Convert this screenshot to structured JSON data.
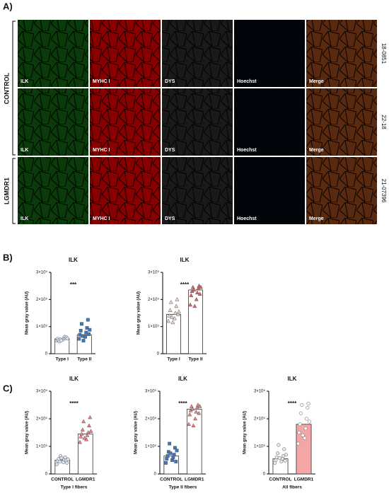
{
  "panel_a": {
    "label": "A)",
    "groups": [
      "CONTROL",
      "LGMDR1"
    ],
    "samples": [
      "18-0851",
      "22-18",
      "21-07396"
    ],
    "channels": [
      "ILK",
      "MYHC I",
      "DYS",
      "Hoechst",
      "Merge"
    ]
  },
  "panel_b_label": "B)",
  "panel_c_label": "C)",
  "chart_data": [
    {
      "type": "bar",
      "title": "ILK",
      "ylabel": "Mean gray value (AU)",
      "categories": [
        "Type I",
        "Type II"
      ],
      "values": [
        55000,
        70000
      ],
      "bar_colors": [
        "#ffffff",
        "#ffffff"
      ],
      "point_colors": [
        "#d8e4f0",
        "#3a78c0"
      ],
      "markers": [
        "circle",
        "square"
      ],
      "significance": "***",
      "points": [
        [
          48000,
          52000,
          55000,
          58000,
          50000,
          62000,
          45000,
          57000,
          53000,
          60000,
          49000,
          56000
        ],
        [
          55000,
          62000,
          70000,
          78000,
          85000,
          95000,
          110000,
          125000,
          65000,
          72000,
          48000,
          88000
        ]
      ],
      "ylim": [
        0,
        300000
      ],
      "yticks": [
        0,
        {
          "value": 100000,
          "label": "1×10⁵"
        },
        {
          "value": 200000,
          "label": "2×10⁵"
        },
        {
          "value": 300000,
          "label": "3×10⁵"
        }
      ]
    },
    {
      "type": "bar",
      "title": "ILK",
      "ylabel": "Mean gray value (AU)",
      "categories": [
        "Type I",
        "Type II"
      ],
      "values": [
        145000,
        235000
      ],
      "bar_colors": [
        "#ffffff",
        "#ffffff"
      ],
      "point_colors": [
        "#f2d0d0",
        "#e06060"
      ],
      "markers": [
        "triangle",
        "triangle"
      ],
      "significance": "****",
      "points": [
        [
          120000,
          130000,
          140000,
          150000,
          160000,
          175000,
          190000,
          200000,
          135000,
          145000,
          115000,
          155000
        ],
        [
          180000,
          200000,
          215000,
          225000,
          230000,
          240000,
          245000,
          250000,
          235000,
          220000,
          175000,
          245000
        ]
      ],
      "ylim": [
        0,
        300000
      ],
      "yticks": [
        0,
        {
          "value": 100000,
          "label": "1×10⁵"
        },
        {
          "value": 200000,
          "label": "2×10⁵"
        },
        {
          "value": 300000,
          "label": "3×10⁵"
        }
      ]
    },
    {
      "type": "bar",
      "title": "ILK",
      "ylabel": "Mean gray value (AU)",
      "xlabel": "Type I fibers",
      "categories": [
        "CONTROL",
        "LGMDR1"
      ],
      "values": [
        50000,
        145000
      ],
      "bar_colors": [
        "#ffffff",
        "#ffffff"
      ],
      "point_colors": [
        "#d8e4f0",
        "#f08080"
      ],
      "markers": [
        "circle",
        "triangle"
      ],
      "significance": "****",
      "points": [
        [
          35000,
          42000,
          48000,
          52000,
          55000,
          60000,
          45000,
          50000,
          65000,
          40000,
          58000,
          53000
        ],
        [
          115000,
          125000,
          135000,
          140000,
          145000,
          150000,
          160000,
          175000,
          190000,
          205000,
          130000,
          155000
        ]
      ],
      "ylim": [
        0,
        300000
      ],
      "yticks": [
        0,
        {
          "value": 100000,
          "label": "1×10⁵"
        },
        {
          "value": 200000,
          "label": "2×10⁵"
        },
        {
          "value": 300000,
          "label": "3×10⁵"
        }
      ]
    },
    {
      "type": "bar",
      "title": "ILK",
      "ylabel": "Mean gray value (AU)",
      "xlabel": "Type II fibers",
      "categories": [
        "CONTROL",
        "LGMDR1"
      ],
      "values": [
        65000,
        235000
      ],
      "bar_colors": [
        "#ffffff",
        "#ffffff"
      ],
      "point_colors": [
        "#3a78c0",
        "#f08080"
      ],
      "markers": [
        "square",
        "triangle"
      ],
      "significance": "****",
      "points": [
        [
          40000,
          50000,
          55000,
          60000,
          65000,
          70000,
          80000,
          95000,
          110000,
          45000,
          75000,
          85000
        ],
        [
          180000,
          200000,
          215000,
          225000,
          230000,
          240000,
          245000,
          250000,
          235000,
          220000,
          175000,
          245000
        ]
      ],
      "ylim": [
        0,
        300000
      ],
      "yticks": [
        0,
        {
          "value": 100000,
          "label": "1×10⁵"
        },
        {
          "value": 200000,
          "label": "2×10⁵"
        },
        {
          "value": 300000,
          "label": "3×10⁵"
        }
      ]
    },
    {
      "type": "bar",
      "title": "ILK",
      "ylabel": "Mean gray value (AU)",
      "xlabel": "All fibers",
      "categories": [
        "CONTROL",
        "LGMDR1"
      ],
      "values": [
        55000,
        180000
      ],
      "bar_colors": [
        "#ffffff",
        "#f4a6a6"
      ],
      "point_colors": [
        "#e8e8e8",
        "#ffffff"
      ],
      "markers": [
        "circle",
        "circle"
      ],
      "significance": "****",
      "points": [
        [
          40000,
          45000,
          50000,
          55000,
          60000,
          65000,
          75000,
          90000,
          105000,
          48000,
          58000,
          70000
        ],
        [
          110000,
          130000,
          150000,
          165000,
          180000,
          200000,
          220000,
          240000,
          250000,
          255000,
          140000,
          190000
        ]
      ],
      "ylim": [
        0,
        300000
      ],
      "yticks": [
        0,
        {
          "value": 100000,
          "label": "1×10⁵"
        },
        {
          "value": 200000,
          "label": "2×10⁵"
        },
        {
          "value": 300000,
          "label": "3×10⁵"
        }
      ]
    }
  ]
}
